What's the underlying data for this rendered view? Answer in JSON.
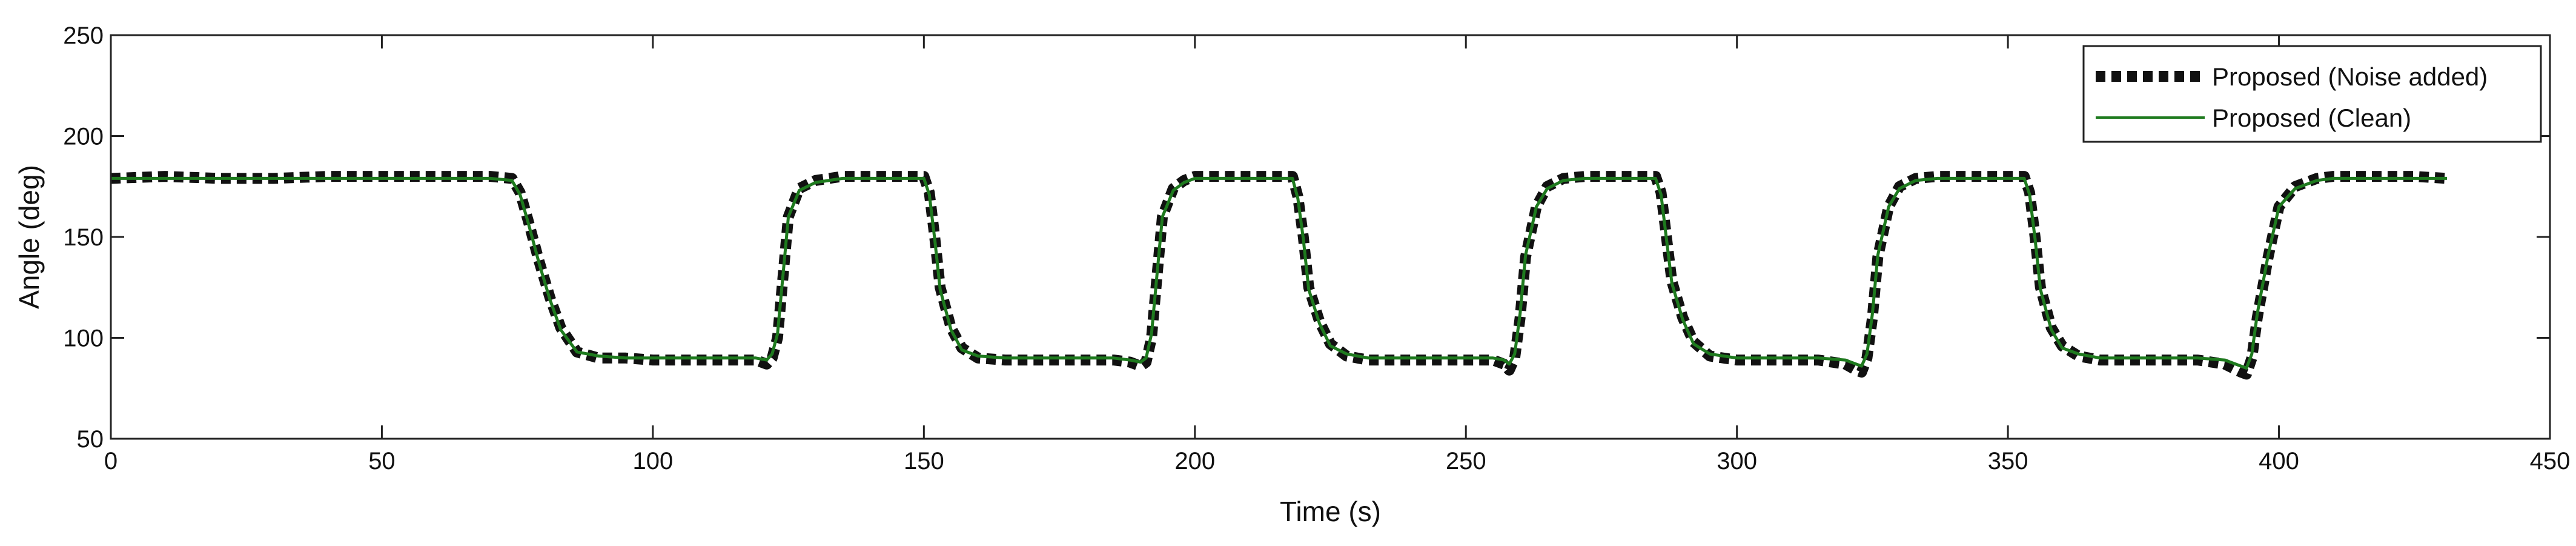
{
  "chart_data": {
    "type": "line",
    "title": "",
    "xlabel": "Time (s)",
    "ylabel": "Angle (deg)",
    "xlim": [
      0,
      450
    ],
    "ylim": [
      50,
      250
    ],
    "xticks": [
      0,
      50,
      100,
      150,
      200,
      250,
      300,
      350,
      400,
      450
    ],
    "yticks": [
      50,
      100,
      150,
      200,
      250
    ],
    "grid": false,
    "legend_position": "top-right",
    "series": [
      {
        "name": "Proposed (Noise added)",
        "color": "#111111",
        "style": "thick-dotted",
        "x": [
          0,
          10,
          20,
          30,
          40,
          50,
          60,
          70,
          74,
          75.5,
          77,
          79,
          81,
          83,
          86,
          90,
          95,
          100,
          105,
          110,
          115,
          119,
          121,
          122,
          123,
          124,
          125,
          127,
          130,
          135,
          140,
          145,
          150,
          151,
          152,
          153,
          155,
          157,
          160,
          165,
          170,
          175,
          180,
          185,
          188,
          190,
          191,
          192,
          193,
          194,
          196,
          198,
          200,
          205,
          210,
          215,
          218,
          219,
          220,
          221,
          223,
          225,
          228,
          232,
          236,
          240,
          245,
          250,
          255,
          257,
          258,
          259,
          260,
          261,
          263,
          265,
          268,
          272,
          276,
          280,
          285,
          286,
          287,
          288,
          290,
          292,
          295,
          300,
          305,
          310,
          315,
          320,
          322,
          323,
          324,
          325,
          326,
          328,
          330,
          333,
          337,
          340,
          345,
          350,
          353,
          354,
          355,
          356,
          358,
          360,
          363,
          367,
          370,
          375,
          380,
          385,
          390,
          393,
          394,
          395,
          396,
          398,
          400,
          403,
          407,
          410,
          415,
          420,
          425,
          431
        ],
        "y": [
          179,
          180,
          179,
          179,
          180,
          180,
          180,
          180,
          179,
          172,
          158,
          138,
          120,
          105,
          93,
          90,
          90,
          89,
          89,
          89,
          89,
          89,
          87,
          90,
          100,
          130,
          160,
          174,
          178,
          180,
          180,
          180,
          180,
          172,
          150,
          125,
          105,
          95,
          90,
          89,
          89,
          89,
          89,
          89,
          88,
          86,
          88,
          100,
          130,
          160,
          174,
          178,
          180,
          180,
          180,
          180,
          180,
          170,
          150,
          125,
          108,
          97,
          91,
          89,
          89,
          89,
          89,
          89,
          89,
          87,
          84,
          90,
          110,
          140,
          165,
          175,
          179,
          180,
          180,
          180,
          180,
          172,
          150,
          128,
          110,
          98,
          91,
          89,
          89,
          89,
          89,
          87,
          84,
          83,
          90,
          110,
          140,
          165,
          175,
          179,
          180,
          180,
          180,
          180,
          180,
          172,
          150,
          125,
          105,
          96,
          91,
          89,
          89,
          89,
          89,
          89,
          87,
          83,
          82,
          90,
          110,
          140,
          165,
          175,
          179,
          180,
          180,
          180,
          180,
          179
        ]
      },
      {
        "name": "Proposed (Clean)",
        "color": "#1e7a1e",
        "style": "solid",
        "x": [
          0,
          10,
          20,
          30,
          40,
          50,
          60,
          70,
          74,
          75.5,
          77,
          79,
          81,
          83,
          86,
          90,
          95,
          100,
          105,
          110,
          115,
          119,
          121,
          122,
          123,
          124,
          125,
          127,
          130,
          135,
          140,
          145,
          150,
          151,
          152,
          153,
          155,
          157,
          160,
          165,
          170,
          175,
          180,
          185,
          188,
          190,
          191,
          192,
          193,
          194,
          196,
          198,
          200,
          205,
          210,
          215,
          218,
          219,
          220,
          221,
          223,
          225,
          228,
          232,
          236,
          240,
          245,
          250,
          255,
          257,
          258,
          259,
          260,
          261,
          263,
          265,
          268,
          272,
          276,
          280,
          285,
          286,
          287,
          288,
          290,
          292,
          295,
          300,
          305,
          310,
          315,
          320,
          322,
          323,
          324,
          325,
          326,
          328,
          330,
          333,
          337,
          340,
          345,
          350,
          353,
          354,
          355,
          356,
          358,
          360,
          363,
          367,
          370,
          375,
          380,
          385,
          390,
          393,
          394,
          395,
          396,
          398,
          400,
          403,
          407,
          410,
          415,
          420,
          425,
          431
        ],
        "y": [
          179,
          179,
          179,
          179,
          179,
          179,
          179,
          179,
          178,
          171,
          157,
          137,
          119,
          104,
          93,
          91,
          90,
          90,
          90,
          90,
          90,
          90,
          89,
          92,
          102,
          131,
          160,
          173,
          177,
          179,
          179,
          179,
          179,
          171,
          149,
          124,
          104,
          94,
          91,
          90,
          90,
          90,
          90,
          90,
          89,
          88,
          90,
          102,
          131,
          160,
          173,
          177,
          179,
          179,
          179,
          179,
          179,
          169,
          149,
          124,
          107,
          96,
          92,
          90,
          90,
          90,
          90,
          90,
          90,
          89,
          87,
          92,
          112,
          141,
          165,
          174,
          178,
          179,
          179,
          179,
          179,
          171,
          149,
          127,
          109,
          97,
          92,
          90,
          90,
          90,
          90,
          89,
          87,
          86,
          92,
          112,
          141,
          165,
          174,
          178,
          179,
          179,
          179,
          179,
          179,
          171,
          149,
          124,
          104,
          95,
          92,
          90,
          90,
          90,
          90,
          90,
          89,
          86,
          85,
          92,
          112,
          141,
          165,
          174,
          178,
          179,
          179,
          179,
          179,
          179
        ]
      }
    ]
  }
}
